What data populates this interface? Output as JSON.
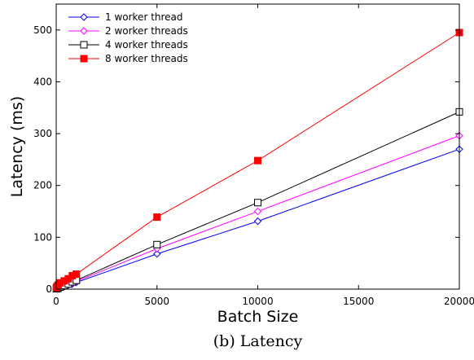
{
  "chart_data": {
    "type": "line",
    "xlabel": "Batch Size",
    "ylabel": "Latency (ms)",
    "caption": "(b) Latency",
    "xlim": [
      0,
      20000
    ],
    "ylim": [
      0,
      550
    ],
    "xticks": [
      0,
      5000,
      10000,
      15000,
      20000
    ],
    "yticks": [
      0,
      100,
      200,
      300,
      400,
      500
    ],
    "grid": false,
    "legend_position": "top-left",
    "series": [
      {
        "name": "1 worker thread",
        "color": "#0000ff",
        "marker": "diamond-open",
        "x": [
          10,
          50,
          100,
          200,
          400,
          600,
          800,
          1000,
          5000,
          10000,
          20000
        ],
        "y": [
          0.5,
          0.8,
          1.2,
          3,
          5,
          8,
          10,
          13,
          68,
          131,
          270
        ]
      },
      {
        "name": "2 worker threads",
        "color": "#ff00ff",
        "marker": "diamond-open",
        "x": [
          10,
          50,
          100,
          200,
          400,
          600,
          800,
          1000,
          5000,
          10000,
          20000
        ],
        "y": [
          0.6,
          1,
          1.5,
          3.5,
          6,
          9,
          12,
          15,
          78,
          150,
          296
        ]
      },
      {
        "name": "4 worker threads",
        "color": "#000000",
        "marker": "square-open",
        "x": [
          10,
          50,
          100,
          200,
          400,
          600,
          800,
          1000,
          5000,
          10000,
          20000
        ],
        "y": [
          0.7,
          1.2,
          2,
          4,
          7,
          10,
          14,
          17,
          86,
          167,
          342
        ]
      },
      {
        "name": "8 worker threads",
        "color": "#ff0000",
        "marker": "square-filled",
        "x": [
          10,
          50,
          100,
          200,
          400,
          600,
          800,
          1000,
          5000,
          10000,
          20000
        ],
        "y": [
          3,
          6,
          8,
          12,
          16,
          20,
          26,
          29,
          139,
          248,
          495
        ]
      }
    ]
  }
}
